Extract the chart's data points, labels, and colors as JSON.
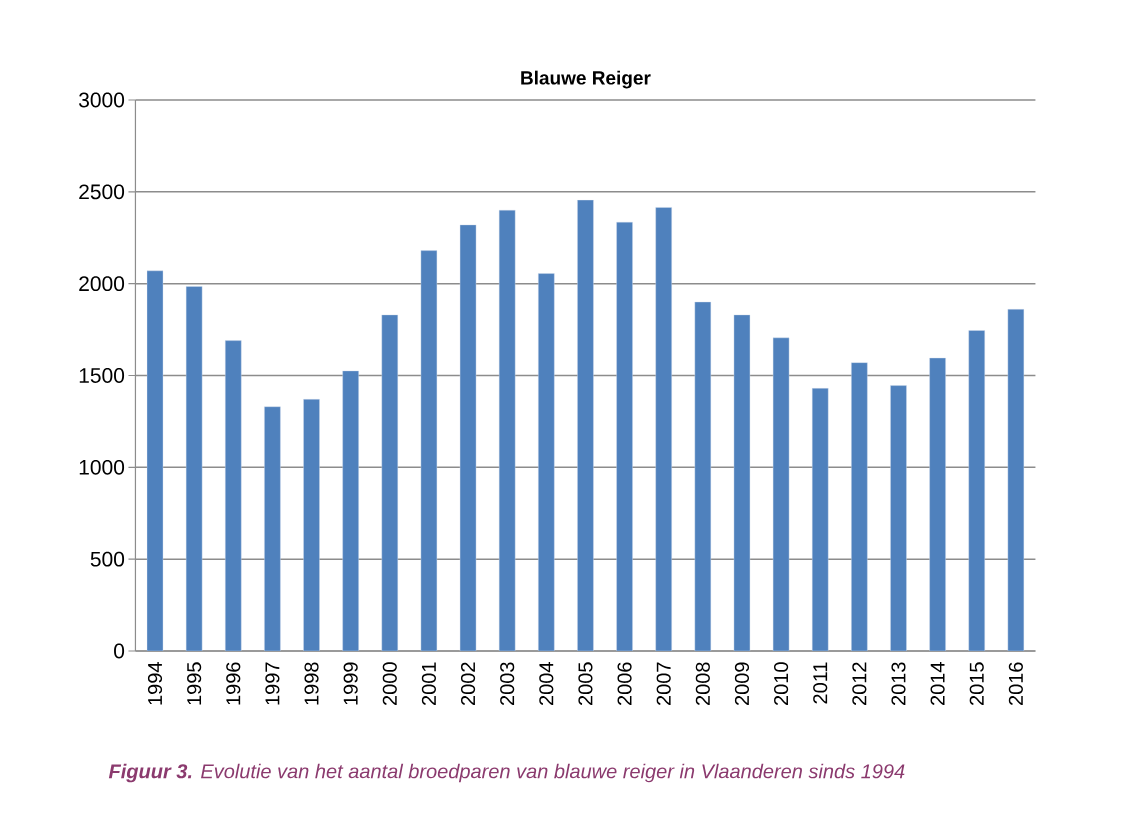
{
  "chart_data": {
    "type": "bar",
    "title": "Blauwe Reiger",
    "categories": [
      "1994",
      "1995",
      "1996",
      "1997",
      "1998",
      "1999",
      "2000",
      "2001",
      "2002",
      "2003",
      "2004",
      "2005",
      "2006",
      "2007",
      "2008",
      "2009",
      "2010",
      "2011",
      "2012",
      "2013",
      "2014",
      "2015",
      "2016"
    ],
    "values": [
      2070,
      1985,
      1690,
      1330,
      1370,
      1525,
      1830,
      2180,
      2320,
      2400,
      2055,
      2455,
      2335,
      2415,
      1900,
      1830,
      1705,
      1430,
      1570,
      1445,
      1595,
      1745,
      1860
    ],
    "color": "#4f81bd",
    "ylim": [
      0,
      3000
    ],
    "yticks": [
      0,
      500,
      1000,
      1500,
      2000,
      2500,
      3000
    ],
    "grid": "y",
    "annotations": [
      "**Figuur 3.**  Evolutie van het aantal broedparen van blauwe reiger in Vlaanderen sinds 1994"
    ]
  }
}
